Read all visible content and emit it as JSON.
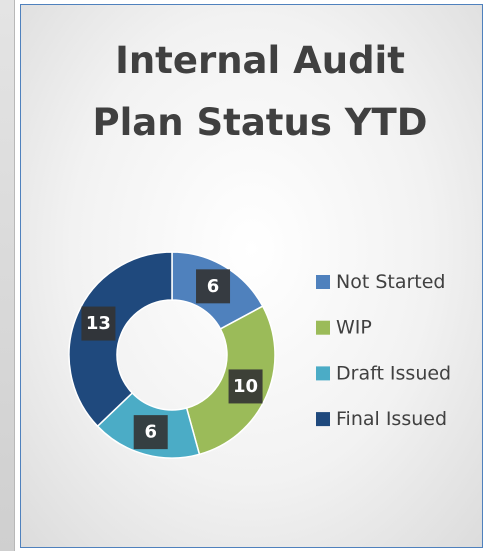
{
  "chart_data": {
    "type": "donut",
    "title": "Internal Audit Plan Status YTD",
    "categories": [
      "Not Started",
      "WIP",
      "Draft Issued",
      "Final Issued"
    ],
    "values": [
      6,
      10,
      6,
      13
    ],
    "colors": [
      "#4f81bd",
      "#9bbb59",
      "#4bacc6",
      "#1f497d"
    ],
    "legend": "right"
  }
}
